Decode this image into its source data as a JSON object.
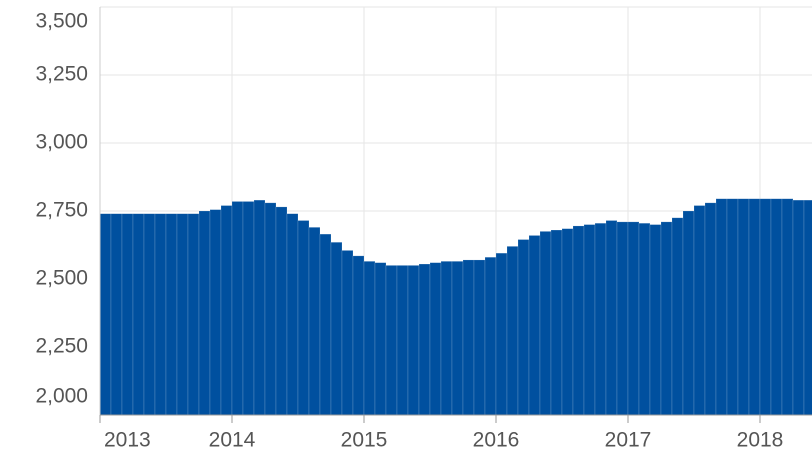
{
  "chart_data": {
    "type": "bar",
    "categories": [
      "2013",
      null,
      null,
      null,
      null,
      null,
      null,
      null,
      null,
      null,
      null,
      null,
      "2014",
      null,
      null,
      null,
      null,
      null,
      null,
      null,
      null,
      null,
      null,
      null,
      "2015",
      null,
      null,
      null,
      null,
      null,
      null,
      null,
      null,
      null,
      null,
      null,
      "2016",
      null,
      null,
      null,
      null,
      null,
      null,
      null,
      null,
      null,
      null,
      null,
      "2017",
      null,
      null,
      null,
      null,
      null,
      null,
      null,
      null,
      null,
      null,
      null,
      "2018",
      null,
      null,
      null,
      null
    ],
    "values": [
      2740,
      2740,
      2740,
      2740,
      2740,
      2740,
      2740,
      2740,
      2740,
      2750,
      2755,
      2770,
      2785,
      2785,
      2790,
      2780,
      2765,
      2740,
      2715,
      2690,
      2665,
      2635,
      2605,
      2585,
      2565,
      2560,
      2550,
      2550,
      2550,
      2555,
      2560,
      2565,
      2565,
      2570,
      2570,
      2580,
      2595,
      2620,
      2645,
      2660,
      2675,
      2680,
      2685,
      2695,
      2700,
      2705,
      2715,
      2710,
      2710,
      2705,
      2700,
      2710,
      2725,
      2750,
      2770,
      2780,
      2795,
      2795,
      2795,
      2795,
      2795,
      2795,
      2795,
      2790,
      2790
    ],
    "color": "#00509f",
    "ylim": [
      2000,
      3500
    ],
    "yticks": [
      {
        "value": 2000,
        "label": "2,000"
      },
      {
        "value": 2250,
        "label": "2,250"
      },
      {
        "value": 2500,
        "label": "2,500"
      },
      {
        "value": 2750,
        "label": "2,750"
      },
      {
        "value": 3000,
        "label": "3,000"
      },
      {
        "value": 3250,
        "label": "3,250"
      },
      {
        "value": 3500,
        "label": "3,500"
      }
    ],
    "grid": true
  }
}
